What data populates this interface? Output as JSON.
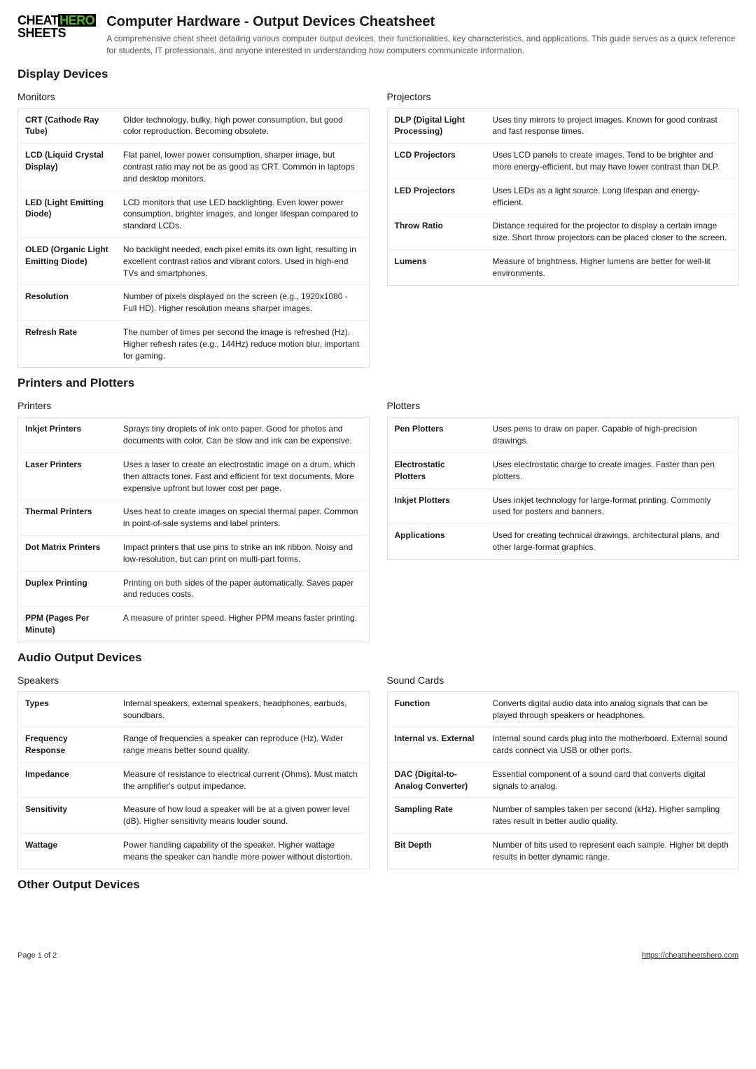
{
  "logo": {
    "cheat": "CHEAT",
    "hero": "HERO",
    "sheets": "SHEETS"
  },
  "title": "Computer Hardware - Output Devices Cheatsheet",
  "subtitle": "A comprehensive cheat sheet detailing various computer output devices, their functionalities, key characteristics, and applications. This guide serves as a quick reference for students, IT professionals, and anyone interested in understanding how computers communicate information.",
  "sections": {
    "display": {
      "heading": "Display Devices",
      "left": {
        "title": "Monitors",
        "rows": [
          {
            "term": "CRT (Cathode Ray Tube)",
            "def": "Older technology, bulky, high power consumption, but good color reproduction. Becoming obsolete."
          },
          {
            "term": "LCD (Liquid Crystal Display)",
            "def": "Flat panel, lower power consumption, sharper image, but contrast ratio may not be as good as CRT. Common in laptops and desktop monitors."
          },
          {
            "term": "LED (Light Emitting Diode)",
            "def": "LCD monitors that use LED backlighting. Even lower power consumption, brighter images, and longer lifespan compared to standard LCDs."
          },
          {
            "term": "OLED (Organic Light Emitting Diode)",
            "def": "No backlight needed, each pixel emits its own light, resulting in excellent contrast ratios and vibrant colors. Used in high-end TVs and smartphones."
          },
          {
            "term": "Resolution",
            "def": "Number of pixels displayed on the screen (e.g., 1920x1080 - Full HD). Higher resolution means sharper images."
          },
          {
            "term": "Refresh Rate",
            "def": "The number of times per second the image is refreshed (Hz). Higher refresh rates (e.g., 144Hz) reduce motion blur, important for gaming."
          }
        ]
      },
      "right": {
        "title": "Projectors",
        "rows": [
          {
            "term": "DLP (Digital Light Processing)",
            "def": "Uses tiny mirrors to project images. Known for good contrast and fast response times."
          },
          {
            "term": "LCD Projectors",
            "def": "Uses LCD panels to create images. Tend to be brighter and more energy-efficient, but may have lower contrast than DLP."
          },
          {
            "term": "LED Projectors",
            "def": "Uses LEDs as a light source. Long lifespan and energy-efficient."
          },
          {
            "term": "Throw Ratio",
            "def": "Distance required for the projector to display a certain image size. Short throw projectors can be placed closer to the screen."
          },
          {
            "term": "Lumens",
            "def": "Measure of brightness. Higher lumens are better for well-lit environments."
          }
        ]
      }
    },
    "printers": {
      "heading": "Printers and Plotters",
      "left": {
        "title": "Printers",
        "rows": [
          {
            "term": "Inkjet Printers",
            "def": "Sprays tiny droplets of ink onto paper. Good for photos and documents with color. Can be slow and ink can be expensive."
          },
          {
            "term": "Laser Printers",
            "def": "Uses a laser to create an electrostatic image on a drum, which then attracts toner. Fast and efficient for text documents. More expensive upfront but lower cost per page."
          },
          {
            "term": "Thermal Printers",
            "def": "Uses heat to create images on special thermal paper. Common in point-of-sale systems and label printers."
          },
          {
            "term": "Dot Matrix Printers",
            "def": "Impact printers that use pins to strike an ink ribbon. Noisy and low-resolution, but can print on multi-part forms."
          },
          {
            "term": "Duplex Printing",
            "def": "Printing on both sides of the paper automatically. Saves paper and reduces costs."
          },
          {
            "term": "PPM (Pages Per Minute)",
            "def": "A measure of printer speed. Higher PPM means faster printing."
          }
        ]
      },
      "right": {
        "title": "Plotters",
        "rows": [
          {
            "term": "Pen Plotters",
            "def": "Uses pens to draw on paper. Capable of high-precision drawings."
          },
          {
            "term": "Electrostatic Plotters",
            "def": "Uses electrostatic charge to create images. Faster than pen plotters."
          },
          {
            "term": "Inkjet Plotters",
            "def": "Uses inkjet technology for large-format printing. Commonly used for posters and banners."
          },
          {
            "term": "Applications",
            "def": "Used for creating technical drawings, architectural plans, and other large-format graphics."
          }
        ]
      }
    },
    "audio": {
      "heading": "Audio Output Devices",
      "left": {
        "title": "Speakers",
        "rows": [
          {
            "term": "Types",
            "def": "Internal speakers, external speakers, headphones, earbuds, soundbars."
          },
          {
            "term": "Frequency Response",
            "def": "Range of frequencies a speaker can reproduce (Hz). Wider range means better sound quality."
          },
          {
            "term": "Impedance",
            "def": "Measure of resistance to electrical current (Ohms). Must match the amplifier's output impedance."
          },
          {
            "term": "Sensitivity",
            "def": "Measure of how loud a speaker will be at a given power level (dB). Higher sensitivity means louder sound."
          },
          {
            "term": "Wattage",
            "def": "Power handling capability of the speaker. Higher wattage means the speaker can handle more power without distortion."
          }
        ]
      },
      "right": {
        "title": "Sound Cards",
        "rows": [
          {
            "term": "Function",
            "def": "Converts digital audio data into analog signals that can be played through speakers or headphones."
          },
          {
            "term": "Internal vs. External",
            "def": "Internal sound cards plug into the motherboard. External sound cards connect via USB or other ports."
          },
          {
            "term": "DAC (Digital-to-Analog Converter)",
            "def": "Essential component of a sound card that converts digital signals to analog."
          },
          {
            "term": "Sampling Rate",
            "def": "Number of samples taken per second (kHz). Higher sampling rates result in better audio quality."
          },
          {
            "term": "Bit Depth",
            "def": "Number of bits used to represent each sample. Higher bit depth results in better dynamic range."
          }
        ]
      }
    },
    "other": {
      "heading": "Other Output Devices"
    }
  },
  "footer": {
    "page": "Page 1 of 2",
    "url": "https://cheatsheetshero.com"
  }
}
